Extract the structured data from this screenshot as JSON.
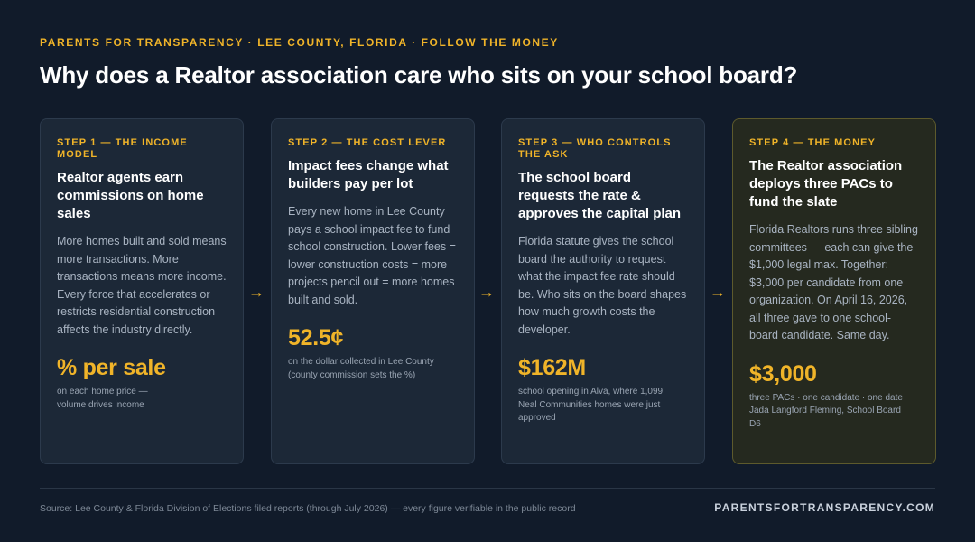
{
  "header": {
    "kicker": "PARENTS FOR TRANSPARENCY · LEE COUNTY, FLORIDA · FOLLOW THE MONEY",
    "headline": "Why does a Realtor association care who sits on your school board?"
  },
  "steps": [
    {
      "step": "STEP 1 — THE INCOME MODEL",
      "title": "Realtor agents earn commissions on home sales",
      "body": "More homes built and sold means more transactions. More transactions means more income. Every force that accelerates or restricts residential construction affects the industry directly.",
      "stat": "% per sale",
      "note_lines": [
        "on each home price —",
        "volume drives income"
      ]
    },
    {
      "step": "STEP 2 — THE COST LEVER",
      "title": "Impact fees change what builders pay per lot",
      "body": "Every new home in Lee County pays a school impact fee to fund school construction. Lower fees = lower construction costs = more projects pencil out = more homes built and sold.",
      "stat": "52.5¢",
      "note_lines": [
        "on the dollar collected in Lee County",
        "(county commission sets the %)"
      ]
    },
    {
      "step": "STEP 3 — WHO CONTROLS THE ASK",
      "title": "The school board requests the rate & approves the capital plan",
      "body": "Florida statute gives the school board the authority to request what the impact fee rate should be. Who sits on the board shapes how much growth costs the developer.",
      "stat": "$162M",
      "note_lines": [
        "school opening in Alva, where 1,099",
        "Neal Communities homes were just",
        "approved"
      ]
    },
    {
      "step": "STEP 4 — THE MONEY",
      "title": "The Realtor association deploys three PACs to fund the slate",
      "body": "Florida Realtors runs three sibling committees — each can give the $1,000 legal max. Together: $3,000 per candidate from one organization. On April 16, 2026, all three gave to one school-board candidate. Same day.",
      "stat": "$3,000",
      "note_lines": [
        "three PACs · one candidate · one date",
        "Jada Langford Fleming, School Board",
        "D6"
      ]
    }
  ],
  "arrows": [
    "→",
    "→",
    "→"
  ],
  "footer": {
    "source": "Source: Lee County & Florida Division of Elections filed reports (through July 2026) — every figure verifiable in the public record",
    "site": "PARENTSFORTRANSPARENCY.COM"
  },
  "colors": {
    "background": "#111b2a",
    "card": "#1c2837",
    "accent": "#f0b429",
    "final_card": "#25291f"
  }
}
